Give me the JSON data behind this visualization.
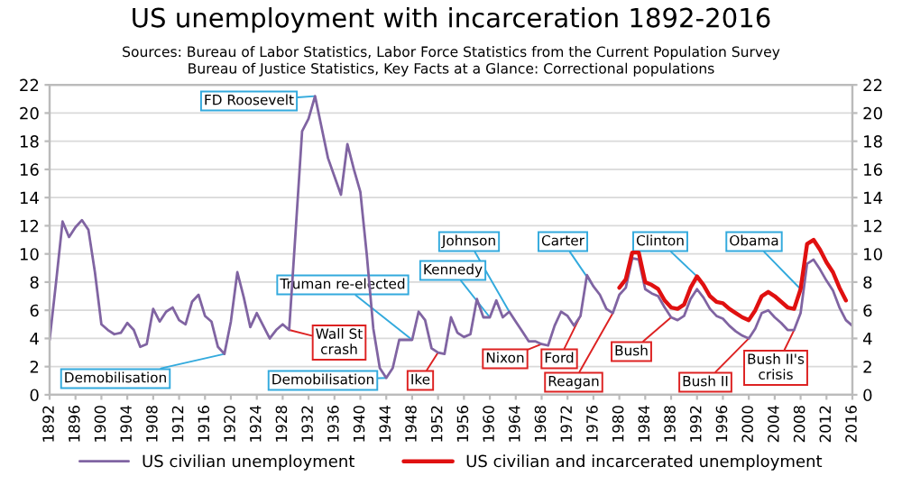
{
  "chart_data": {
    "type": "line",
    "title": "US unemployment with incarceration 1892-2016",
    "subtitle": "Sources: Bureau of Labor Statistics, Labor Force Statistics from the Current Population Survey\nBureau of Justice Statistics, Key Facts at a Glance: Correctional populations",
    "series": [
      {
        "name": "US civilian unemployment",
        "color": "#8064a2",
        "x": [
          1892,
          1893,
          1894,
          1895,
          1896,
          1897,
          1898,
          1899,
          1900,
          1901,
          1902,
          1903,
          1904,
          1905,
          1906,
          1907,
          1908,
          1909,
          1910,
          1911,
          1912,
          1913,
          1914,
          1915,
          1916,
          1917,
          1918,
          1919,
          1920,
          1921,
          1922,
          1923,
          1924,
          1925,
          1926,
          1927,
          1928,
          1929,
          1930,
          1931,
          1932,
          1933,
          1934,
          1935,
          1936,
          1937,
          1938,
          1939,
          1940,
          1941,
          1942,
          1943,
          1944,
          1945,
          1946,
          1947,
          1948,
          1949,
          1950,
          1951,
          1952,
          1953,
          1954,
          1955,
          1956,
          1957,
          1958,
          1959,
          1960,
          1961,
          1962,
          1963,
          1964,
          1965,
          1966,
          1967,
          1968,
          1969,
          1970,
          1971,
          1972,
          1973,
          1974,
          1975,
          1976,
          1977,
          1978,
          1979,
          1980,
          1981,
          1982,
          1983,
          1984,
          1985,
          1986,
          1987,
          1988,
          1989,
          1990,
          1991,
          1992,
          1993,
          1994,
          1995,
          1996,
          1997,
          1998,
          1999,
          2000,
          2001,
          2002,
          2003,
          2004,
          2005,
          2006,
          2007,
          2008,
          2009,
          2010,
          2011,
          2012,
          2013,
          2014,
          2015,
          2016
        ],
        "values": [
          3.9,
          8.0,
          12.3,
          11.2,
          11.9,
          12.4,
          11.7,
          8.7,
          5.0,
          4.6,
          4.3,
          4.4,
          5.1,
          4.6,
          3.4,
          3.6,
          6.1,
          5.2,
          5.9,
          6.2,
          5.3,
          5.0,
          6.6,
          7.1,
          5.6,
          5.2,
          3.4,
          2.9,
          5.2,
          8.7,
          6.9,
          4.8,
          5.8,
          4.9,
          4.0,
          4.6,
          5.0,
          4.6,
          11.6,
          18.7,
          19.6,
          21.2,
          19.0,
          16.8,
          15.5,
          14.2,
          17.8,
          16.0,
          14.4,
          9.9,
          4.7,
          1.9,
          1.2,
          1.9,
          3.9,
          3.9,
          3.9,
          5.9,
          5.3,
          3.3,
          3.0,
          2.9,
          5.5,
          4.4,
          4.1,
          4.3,
          6.8,
          5.5,
          5.5,
          6.7,
          5.5,
          5.9,
          5.2,
          4.5,
          3.8,
          3.8,
          3.6,
          3.5,
          4.9,
          5.9,
          5.6,
          4.9,
          5.6,
          8.5,
          7.7,
          7.1,
          6.1,
          5.8,
          7.1,
          7.6,
          9.7,
          9.6,
          7.5,
          7.2,
          7.0,
          6.2,
          5.5,
          5.3,
          5.6,
          6.8,
          7.5,
          6.9,
          6.1,
          5.6,
          5.4,
          4.9,
          4.5,
          4.2,
          4.0,
          4.7,
          5.8,
          6.0,
          5.5,
          5.1,
          4.6,
          4.6,
          5.8,
          9.3,
          9.6,
          8.9,
          8.1,
          7.4,
          6.2,
          5.3,
          4.9
        ]
      },
      {
        "name": "US civilian and incarcerated unemployment",
        "color": "#e01010",
        "x": [
          1980,
          1981,
          1982,
          1983,
          1984,
          1985,
          1986,
          1987,
          1988,
          1989,
          1990,
          1991,
          1992,
          1993,
          1994,
          1995,
          1996,
          1997,
          1998,
          1999,
          2000,
          2001,
          2002,
          2003,
          2004,
          2005,
          2006,
          2007,
          2008,
          2009,
          2010,
          2011,
          2012,
          2013,
          2014,
          2015
        ],
        "values": [
          7.6,
          8.2,
          10.1,
          10.1,
          8.0,
          7.8,
          7.5,
          6.7,
          6.2,
          6.1,
          6.4,
          7.6,
          8.4,
          7.8,
          7.0,
          6.6,
          6.5,
          6.1,
          5.8,
          5.5,
          5.3,
          6.0,
          7.0,
          7.3,
          7.0,
          6.6,
          6.2,
          6.1,
          7.5,
          10.7,
          11.0,
          10.3,
          9.4,
          8.7,
          7.6,
          6.7
        ]
      }
    ],
    "annotations": [
      {
        "text": "FD Roosevelt",
        "x": 1933,
        "y": 21.2
      },
      {
        "text": "Demobilisation",
        "x": 1919,
        "y": 2.9
      },
      {
        "text": "Wall St\ncrash",
        "x": 1929,
        "y": 4.6
      },
      {
        "text": "Truman re-elected",
        "x": 1948,
        "y": 3.9
      },
      {
        "text": "Demobilisation",
        "x": 1944,
        "y": 1.2
      },
      {
        "text": "Ike",
        "x": 1952,
        "y": 3.0
      },
      {
        "text": "Johnson",
        "x": 1963,
        "y": 5.9
      },
      {
        "text": "Kennedy",
        "x": 1960,
        "y": 5.5
      },
      {
        "text": "Nixon",
        "x": 1968,
        "y": 3.6
      },
      {
        "text": "Ford",
        "x": 1974,
        "y": 5.6
      },
      {
        "text": "Carter",
        "x": 1976,
        "y": 7.7
      },
      {
        "text": "Reagan",
        "x": 1979,
        "y": 5.8
      },
      {
        "text": "Bush",
        "x": 1988,
        "y": 5.5
      },
      {
        "text": "Clinton",
        "x": 1992,
        "y": 8.4
      },
      {
        "text": "Bush II",
        "x": 2000,
        "y": 4.0
      },
      {
        "text": "Obama",
        "x": 2008,
        "y": 7.5
      },
      {
        "text": "Bush II's\ncrisis",
        "x": 2007,
        "y": 4.6
      }
    ],
    "xlim": [
      1892,
      2016
    ],
    "xticks": [
      1892,
      1896,
      1900,
      1904,
      1908,
      1912,
      1916,
      1920,
      1924,
      1928,
      1932,
      1936,
      1940,
      1944,
      1948,
      1952,
      1956,
      1960,
      1964,
      1968,
      1972,
      1976,
      1980,
      1984,
      1988,
      1992,
      1996,
      2000,
      2004,
      2008,
      2012,
      2016
    ],
    "ylim": [
      0,
      22
    ],
    "yticks": [
      0,
      2,
      4,
      6,
      8,
      10,
      12,
      14,
      16,
      18,
      20,
      22
    ],
    "y2lim": [
      0,
      22
    ],
    "y2ticks": [
      0,
      2,
      4,
      6,
      8,
      10,
      12,
      14,
      16,
      18,
      20,
      22
    ],
    "grid": "y",
    "legend": "bottom",
    "marker": "none",
    "line_style": "solid"
  }
}
